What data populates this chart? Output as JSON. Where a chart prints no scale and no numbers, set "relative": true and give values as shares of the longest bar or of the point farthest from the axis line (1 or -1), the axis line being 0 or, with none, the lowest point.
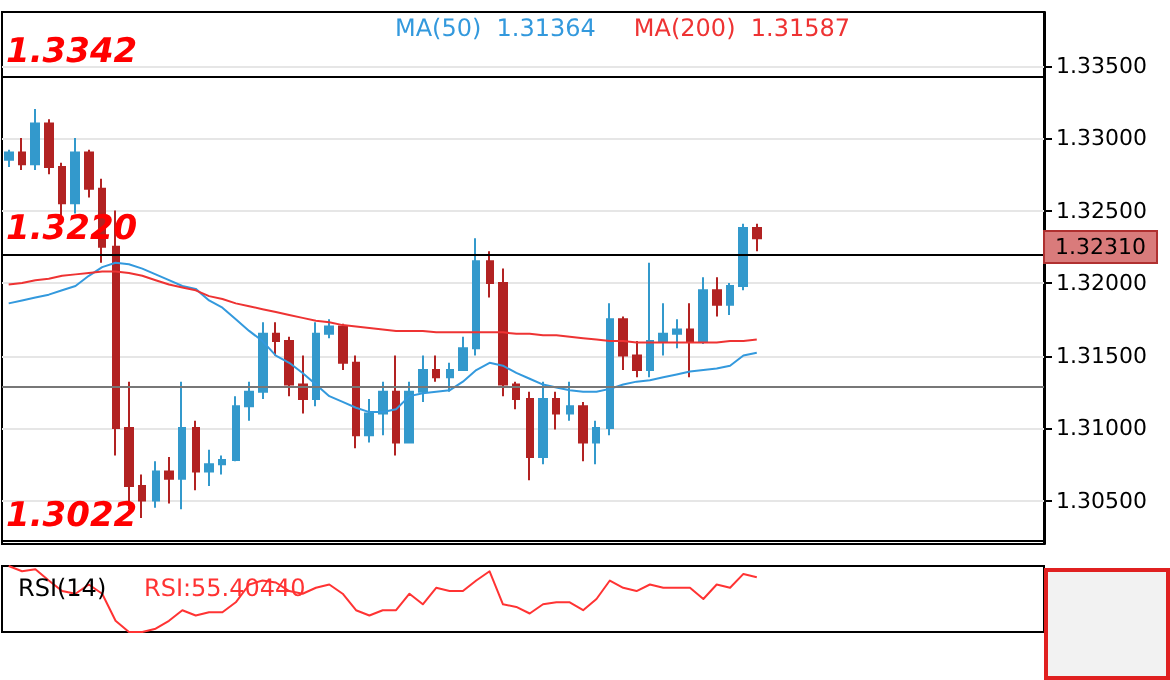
{
  "chart_data": [
    {
      "type": "candlestick",
      "categories": [
        null,
        null,
        null,
        null,
        null,
        null,
        null,
        null,
        null,
        null,
        null,
        null,
        null,
        null,
        null,
        null,
        null,
        null,
        null,
        null,
        null,
        null,
        null,
        null,
        null,
        null,
        null,
        null,
        null,
        null,
        null,
        null,
        null,
        null,
        null,
        null,
        null,
        null,
        null,
        null,
        null,
        null,
        null,
        null,
        null,
        null,
        null,
        null,
        null,
        null,
        null,
        null,
        null,
        null,
        null,
        null,
        null,
        null,
        null,
        null,
        null,
        null,
        null,
        null,
        null,
        null,
        null,
        null,
        null,
        null,
        null,
        null,
        null,
        null,
        null,
        null,
        null,
        null
      ],
      "ohlc": [
        [
          1.3285,
          1.3292,
          1.328,
          1.329
        ],
        [
          1.329,
          1.33,
          1.3278,
          1.3282
        ],
        [
          1.3282,
          1.332,
          1.3278,
          1.331
        ],
        [
          1.331,
          1.3313,
          1.3275,
          1.328
        ],
        [
          1.328,
          1.3283,
          1.3245,
          1.3255
        ],
        [
          1.3255,
          1.33,
          1.3248,
          1.329
        ],
        [
          1.329,
          1.3292,
          1.3259,
          1.3265
        ],
        [
          1.3265,
          1.3272,
          1.3214,
          1.3225
        ],
        [
          1.3225,
          1.325,
          1.3081,
          1.31
        ],
        [
          1.31,
          1.3132,
          1.3044,
          1.306
        ],
        [
          1.306,
          1.3068,
          1.3038,
          1.305
        ],
        [
          1.305,
          1.3077,
          1.3045,
          1.307
        ],
        [
          1.307,
          1.308,
          1.3048,
          1.3065
        ],
        [
          1.3065,
          1.3132,
          1.3044,
          1.31
        ],
        [
          1.31,
          1.3105,
          1.3057,
          1.307
        ],
        [
          1.307,
          1.3085,
          1.306,
          1.3075
        ],
        [
          1.3075,
          1.3081,
          1.3068,
          1.3078
        ],
        [
          1.3078,
          1.3122,
          1.3077,
          1.3115
        ],
        [
          1.3115,
          1.3132,
          1.3105,
          1.3125
        ],
        [
          1.3125,
          1.3173,
          1.312,
          1.3165
        ],
        [
          1.3165,
          1.3173,
          1.315,
          1.316
        ],
        [
          1.316,
          1.3163,
          1.3122,
          1.313
        ],
        [
          1.313,
          1.315,
          1.311,
          1.312
        ],
        [
          1.312,
          1.3173,
          1.3115,
          1.3165
        ],
        [
          1.3165,
          1.3175,
          1.3162,
          1.317
        ],
        [
          1.317,
          1.3172,
          1.314,
          1.3145
        ],
        [
          1.3145,
          1.315,
          1.3086,
          1.3095
        ],
        [
          1.3095,
          1.312,
          1.309,
          1.311
        ],
        [
          1.311,
          1.3132,
          1.3095,
          1.3125
        ],
        [
          1.3125,
          1.315,
          1.3081,
          1.309
        ],
        [
          1.309,
          1.3132,
          1.309,
          1.3125
        ],
        [
          1.3125,
          1.315,
          1.3118,
          1.314
        ],
        [
          1.314,
          1.315,
          1.3132,
          1.3135
        ],
        [
          1.3135,
          1.3145,
          1.3125,
          1.314
        ],
        [
          1.314,
          1.3163,
          1.314,
          1.3155
        ],
        [
          1.3155,
          1.3231,
          1.315,
          1.3215
        ],
        [
          1.3215,
          1.3222,
          1.319,
          1.32
        ],
        [
          1.32,
          1.321,
          1.3122,
          1.313
        ],
        [
          1.313,
          1.3132,
          1.3113,
          1.312
        ],
        [
          1.312,
          1.3125,
          1.3064,
          1.308
        ],
        [
          1.308,
          1.3132,
          1.3075,
          1.312
        ],
        [
          1.312,
          1.3125,
          1.3099,
          1.311
        ],
        [
          1.311,
          1.3132,
          1.3105,
          1.3115
        ],
        [
          1.3115,
          1.3118,
          1.3077,
          1.309
        ],
        [
          1.309,
          1.3105,
          1.3075,
          1.31
        ],
        [
          1.31,
          1.3186,
          1.3095,
          1.3175
        ],
        [
          1.3175,
          1.3177,
          1.314,
          1.315
        ],
        [
          1.315,
          1.316,
          1.3135,
          1.314
        ],
        [
          1.314,
          1.3214,
          1.3135,
          1.316
        ],
        [
          1.316,
          1.3186,
          1.315,
          1.3165
        ],
        [
          1.3165,
          1.3175,
          1.3155,
          1.3168
        ],
        [
          1.3168,
          1.3186,
          1.3135,
          1.316
        ],
        [
          1.316,
          1.3204,
          1.3158,
          1.3195
        ],
        [
          1.3195,
          1.3204,
          1.3177,
          1.3185
        ],
        [
          1.3185,
          1.32,
          1.3178,
          1.3198
        ],
        [
          1.3198,
          1.3241,
          1.3195,
          1.3238
        ],
        [
          1.3238,
          1.3241,
          1.3222,
          1.3231
        ],
        null,
        null,
        null,
        null,
        null,
        null,
        null,
        null,
        null,
        null,
        null,
        null,
        null,
        null,
        null,
        null,
        null,
        null,
        null,
        null,
        null
      ],
      "colors": [
        "#3399cc",
        "#b22222",
        "#3399cc",
        "#b22222",
        "#b22222",
        "#3399cc",
        "#b22222",
        "#b22222",
        "#b22222",
        "#b22222",
        "#b22222",
        "#3399cc",
        "#b22222",
        "#3399cc",
        "#b22222",
        "#3399cc",
        "#3399cc",
        "#3399cc",
        "#3399cc",
        "#3399cc",
        "#b22222",
        "#b22222",
        "#b22222",
        "#3399cc",
        "#3399cc",
        "#b22222",
        "#b22222",
        "#3399cc",
        "#3399cc",
        "#b22222",
        "#3399cc",
        "#3399cc",
        "#b22222",
        "#3399cc",
        "#3399cc",
        "#3399cc",
        "#b22222",
        "#b22222",
        "#b22222",
        "#b22222",
        "#3399cc",
        "#b22222",
        "#3399cc",
        "#b22222",
        "#3399cc",
        "#3399cc",
        "#b22222",
        "#b22222",
        "#3399cc",
        "#3399cc",
        "#3399cc",
        "#b22222",
        "#3399cc",
        "#b22222",
        "#3399cc",
        "#3399cc",
        "#b22222",
        null,
        null,
        null,
        null,
        null,
        null,
        null,
        null,
        null,
        null,
        null,
        null,
        null,
        null,
        null,
        null,
        null,
        null,
        null,
        null,
        null
      ],
      "series": [
        {
          "type": "line",
          "name": "MA(50)  1.31364",
          "color": "#3399dd",
          "values": [
            1.3186,
            1.3188,
            1.319,
            1.3192,
            1.3195,
            1.3198,
            1.3205,
            1.3211,
            1.3214,
            1.3213,
            1.321,
            1.3206,
            1.3202,
            1.3198,
            1.3196,
            1.3188,
            1.3183,
            1.3175,
            1.3167,
            1.316,
            1.315,
            1.3145,
            1.3138,
            1.313,
            1.3122,
            1.3118,
            1.3114,
            1.3111,
            1.3111,
            1.3113,
            1.3122,
            1.3124,
            1.3125,
            1.3126,
            1.3132,
            1.314,
            1.3145,
            1.3143,
            1.3138,
            1.3134,
            1.313,
            1.3128,
            1.3126,
            1.3125,
            1.3125,
            1.3127,
            1.313,
            1.3132,
            1.3133,
            1.3135,
            1.3137,
            1.3139,
            1.314,
            1.3141,
            1.3143,
            1.315,
            1.3152,
            null,
            null,
            null,
            null,
            null,
            null,
            null,
            null,
            null,
            null,
            null,
            null,
            null,
            null,
            null,
            null,
            null,
            null,
            null,
            null,
            null
          ]
        },
        {
          "type": "line",
          "name": "MA(200)  1.31587",
          "color": "#ee3333",
          "values": [
            1.3199,
            1.32,
            1.3202,
            1.3203,
            1.3205,
            1.3206,
            1.3207,
            1.3208,
            1.3208,
            1.3207,
            1.3205,
            1.3202,
            1.3199,
            1.3197,
            1.3195,
            1.3191,
            1.3189,
            1.3186,
            1.3184,
            1.3182,
            1.318,
            1.3178,
            1.3176,
            1.3174,
            1.3173,
            1.3171,
            1.317,
            1.3169,
            1.3168,
            1.3167,
            1.3167,
            1.3167,
            1.3166,
            1.3166,
            1.3166,
            1.3166,
            1.3166,
            1.3166,
            1.3165,
            1.3165,
            1.3164,
            1.3164,
            1.3163,
            1.3162,
            1.3161,
            1.316,
            1.316,
            1.3159,
            1.3159,
            1.3159,
            1.3159,
            1.3159,
            1.3159,
            1.3159,
            1.316,
            1.316,
            1.3161,
            null,
            null,
            null,
            null,
            null,
            null,
            null,
            null,
            null,
            null,
            null,
            null,
            null,
            null,
            null,
            null,
            null,
            null,
            null,
            null,
            null
          ]
        }
      ],
      "ylim": [
        1.302,
        1.3387
      ],
      "yticks": [
        {
          "value": 1.305,
          "label": "1.30500"
        },
        {
          "value": 1.31,
          "label": "1.31000"
        },
        {
          "value": 1.315,
          "label": "1.31500"
        },
        {
          "value": 1.32,
          "label": "1.32000"
        },
        {
          "value": 1.325,
          "label": "1.32500"
        },
        {
          "value": 1.33,
          "label": "1.33000"
        },
        {
          "value": 1.335,
          "label": "1.33500"
        }
      ],
      "grid": "y",
      "legend": "top",
      "ref_lines": [
        {
          "axis": "y",
          "value": 1.3342,
          "label": "1.3342",
          "color": "#000000"
        },
        {
          "axis": "y",
          "value": 1.322,
          "label": "1.3220",
          "color": "#000000"
        },
        {
          "axis": "y",
          "value": 1.3022,
          "label": "1.3022",
          "color": "#000000"
        },
        {
          "axis": "y",
          "value": 1.3128,
          "color": "#777777"
        }
      ],
      "annotations": [
        "1.32310"
      ]
    },
    {
      "type": "line",
      "title": "RSI(14)",
      "relative": true,
      "legend": "top left",
      "categories": [
        null,
        null,
        null,
        null,
        null,
        null,
        null,
        null,
        null,
        null,
        null,
        null,
        null,
        null,
        null,
        null,
        null,
        null,
        null,
        null,
        null,
        null,
        null,
        null,
        null,
        null,
        null,
        null,
        null,
        null,
        null,
        null,
        null,
        null,
        null,
        null,
        null,
        null,
        null,
        null,
        null,
        null,
        null,
        null,
        null,
        null,
        null,
        null,
        null,
        null,
        null,
        null,
        null,
        null,
        null,
        null,
        null,
        null,
        null,
        null,
        null,
        null,
        null,
        null,
        null,
        null,
        null,
        null,
        null,
        null,
        null,
        null,
        null,
        null,
        null,
        null,
        null,
        null
      ],
      "series": [
        {
          "name": "RSI:55.40440",
          "color": "#ff3333",
          "values": [
            1.0,
            0.92,
            0.95,
            0.78,
            0.62,
            0.58,
            0.72,
            0.58,
            0.17,
            0,
            0,
            0.05,
            0.17,
            0.33,
            0.25,
            0.3,
            0.3,
            0.45,
            0.72,
            0.78,
            0.75,
            0.62,
            0.58,
            0.67,
            0.72,
            0.58,
            0.33,
            0.25,
            0.33,
            0.33,
            0.58,
            0.42,
            0.67,
            0.62,
            0.62,
            0.78,
            0.92,
            0.42,
            0.38,
            0.28,
            0.42,
            0.45,
            0.45,
            0.33,
            0.5,
            0.78,
            0.67,
            0.62,
            0.72,
            0.67,
            0.67,
            0.67,
            0.5,
            0.72,
            0.67,
            0.88,
            0.83,
            null,
            null,
            null,
            null,
            null,
            null,
            null,
            null,
            null,
            null,
            null,
            null,
            null,
            null,
            null,
            null,
            null,
            null,
            null,
            null,
            null
          ]
        }
      ]
    }
  ]
}
